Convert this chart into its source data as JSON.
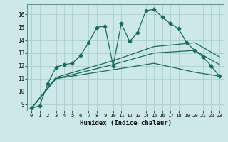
{
  "xlabel": "Humidex (Indice chaleur)",
  "bg_color": "#cce8e8",
  "grid_color": "#aacfcf",
  "line_color": "#1a6b5a",
  "xlim": [
    -0.5,
    23.5
  ],
  "ylim": [
    8.5,
    16.8
  ],
  "yticks": [
    9,
    10,
    11,
    12,
    13,
    14,
    15,
    16
  ],
  "xticks": [
    0,
    1,
    2,
    3,
    4,
    5,
    6,
    7,
    8,
    9,
    10,
    11,
    12,
    13,
    14,
    15,
    16,
    17,
    18,
    19,
    20,
    21,
    22,
    23
  ],
  "line1_x": [
    0,
    1,
    2,
    3,
    4,
    5,
    6,
    7,
    8,
    9,
    10,
    11,
    12,
    13,
    14,
    15,
    16,
    17,
    18,
    19,
    20,
    21,
    22,
    23
  ],
  "line1_y": [
    8.7,
    8.9,
    10.6,
    11.9,
    12.1,
    12.2,
    12.8,
    13.8,
    15.0,
    15.1,
    12.0,
    15.3,
    13.9,
    14.6,
    16.3,
    16.4,
    15.8,
    15.3,
    14.9,
    13.8,
    13.2,
    12.7,
    12.0,
    11.2
  ],
  "line2_x": [
    0,
    3,
    10,
    15,
    20,
    23
  ],
  "line2_y": [
    8.7,
    11.0,
    11.7,
    12.2,
    11.5,
    11.2
  ],
  "line3_x": [
    0,
    3,
    10,
    15,
    20,
    23
  ],
  "line3_y": [
    8.7,
    11.0,
    12.1,
    13.0,
    13.2,
    12.1
  ],
  "line4_x": [
    0,
    3,
    10,
    15,
    20,
    23
  ],
  "line4_y": [
    8.7,
    11.1,
    12.4,
    13.5,
    13.8,
    12.7
  ]
}
